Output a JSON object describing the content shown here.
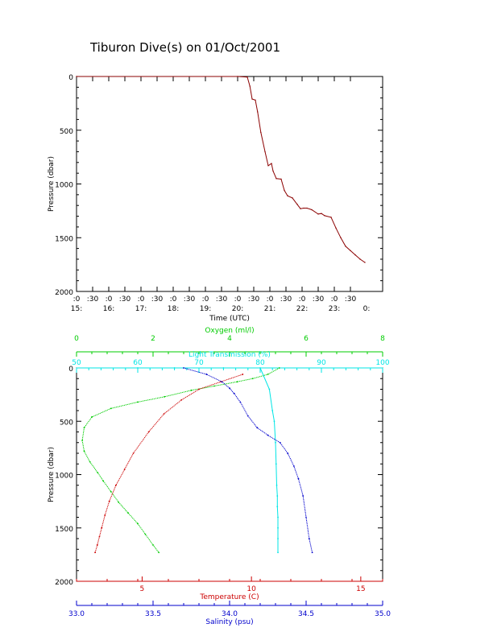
{
  "title": "Tiburon Dive(s) on 01/Oct/2001",
  "chart_data": [
    {
      "type": "line",
      "title": "Tiburon Dive(s) on 01/Oct/2001",
      "xlabel": "Time (UTC)",
      "ylabel": "Pressure (dbar)",
      "xlim": [
        15.0,
        24.5
      ],
      "ylim": [
        2000,
        0
      ],
      "y_ticks": [
        0,
        500,
        1000,
        1500,
        2000
      ],
      "x_ticks_minor": [
        ":0",
        ":30",
        ":0",
        ":30",
        ":0",
        ":30",
        ":0",
        ":30",
        ":0",
        ":30",
        ":0",
        ":30",
        ":0",
        ":30",
        ":0",
        ":30",
        ":0",
        ":30"
      ],
      "x_ticks_major": [
        "15:",
        "16:",
        "17:",
        "18:",
        "19:",
        "20:",
        "21:",
        "22:",
        "23:",
        "0:"
      ],
      "series_color": "#8b0000",
      "x": [
        15.0,
        20.0,
        20.3,
        20.38,
        20.45,
        20.55,
        20.62,
        20.72,
        20.85,
        20.95,
        21.05,
        21.1,
        21.2,
        21.35,
        21.45,
        21.55,
        21.7,
        21.85,
        21.95,
        22.05,
        22.15,
        22.3,
        22.5,
        22.6,
        22.7,
        22.9,
        23.05,
        23.2,
        23.35,
        23.5,
        23.65,
        23.8,
        23.95
      ],
      "y": [
        0,
        0,
        5,
        90,
        210,
        220,
        330,
        520,
        700,
        830,
        810,
        880,
        950,
        955,
        1060,
        1110,
        1130,
        1190,
        1230,
        1225,
        1225,
        1240,
        1280,
        1275,
        1295,
        1310,
        1410,
        1500,
        1580,
        1620,
        1660,
        1700,
        1730
      ]
    },
    {
      "type": "scatter",
      "ylabel": "Pressure (dbar)",
      "ylim": [
        2000,
        0
      ],
      "y_ticks": [
        0,
        500,
        1000,
        1500,
        2000
      ],
      "axes": {
        "oxygen": {
          "label": "Oxygen (ml/l)",
          "range": [
            0,
            8
          ],
          "ticks": [
            0,
            2,
            4,
            6,
            8
          ],
          "color": "#00cc00"
        },
        "light_transmission": {
          "label": "Light Transmission (%)",
          "range": [
            50,
            100
          ],
          "ticks": [
            50,
            60,
            70,
            80,
            90,
            100
          ],
          "color": "#00e5e5"
        },
        "temperature": {
          "label": "Temperature (C)",
          "range": [
            2,
            16
          ],
          "ticks": [
            5,
            10,
            15
          ],
          "color": "#cc0000"
        },
        "salinity": {
          "label": "Salinity (psu)",
          "range": [
            33.0,
            35.0
          ],
          "ticks": [
            "33.0",
            "33.5",
            "34.0",
            "34.5",
            "35.0"
          ],
          "color": "#0000cc"
        }
      },
      "series": [
        {
          "name": "Oxygen (ml/l)",
          "axis": "oxygen",
          "x": [
            5.3,
            5.0,
            4.6,
            4.2,
            3.6,
            3.0,
            2.3,
            1.6,
            0.9,
            0.4,
            0.2,
            0.15,
            0.2,
            0.35,
            0.55,
            0.7,
            0.9,
            1.1,
            1.35,
            1.6,
            1.8,
            2.0,
            2.15
          ],
          "y": [
            0,
            60,
            100,
            130,
            170,
            210,
            270,
            320,
            380,
            460,
            560,
            680,
            780,
            880,
            980,
            1060,
            1160,
            1260,
            1360,
            1460,
            1560,
            1660,
            1730
          ]
        },
        {
          "name": "Light Transmission (%)",
          "axis": "light_transmission",
          "x": [
            60,
            66,
            74,
            80,
            81.5,
            82,
            82.3,
            82.5,
            82.6,
            82.7,
            82.8,
            82.8,
            82.9,
            82.9,
            82.9,
            82.9
          ],
          "y": [
            0,
            0,
            0,
            0,
            200,
            400,
            500,
            700,
            900,
            1100,
            1200,
            1300,
            1400,
            1500,
            1600,
            1730
          ]
        },
        {
          "name": "Temperature (C)",
          "axis": "temperature",
          "x": [
            9.6,
            8.6,
            7.6,
            6.8,
            6.0,
            5.3,
            4.6,
            4.2,
            3.8,
            3.5,
            3.3,
            3.15,
            3.05,
            2.95,
            2.85
          ],
          "y": [
            60,
            130,
            200,
            300,
            430,
            600,
            800,
            950,
            1100,
            1250,
            1380,
            1500,
            1580,
            1660,
            1730
          ]
        },
        {
          "name": "Salinity (psu)",
          "axis": "salinity",
          "x": [
            33.7,
            33.85,
            33.95,
            34.0,
            34.03,
            34.07,
            34.12,
            34.18,
            34.25,
            34.33,
            34.38,
            34.42,
            34.45,
            34.48,
            34.5,
            34.52,
            34.54
          ],
          "y": [
            0,
            60,
            130,
            190,
            240,
            320,
            450,
            560,
            630,
            700,
            800,
            920,
            1040,
            1200,
            1400,
            1600,
            1730
          ]
        }
      ]
    }
  ]
}
